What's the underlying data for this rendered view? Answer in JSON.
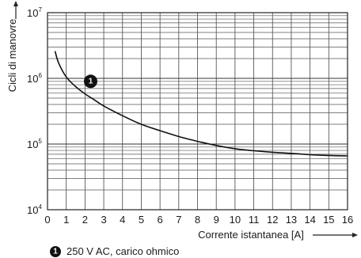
{
  "chart_data": {
    "type": "line",
    "xlabel": "Corrente istantanea [A]",
    "ylabel": "Cicli di manovre",
    "xlim": [
      0,
      16
    ],
    "ylim": [
      10000,
      10000000
    ],
    "yscale": "log",
    "grid": true,
    "x_ticks": [
      "0",
      "1",
      "2",
      "3",
      "4",
      "5",
      "6",
      "7",
      "8",
      "9",
      "10",
      "11",
      "12",
      "13",
      "14",
      "15",
      "16"
    ],
    "y_ticks": [
      {
        "base": "10",
        "exp": "4",
        "value": 10000
      },
      {
        "base": "10",
        "exp": "5",
        "value": 100000
      },
      {
        "base": "10",
        "exp": "6",
        "value": 1000000
      },
      {
        "base": "10",
        "exp": "7",
        "value": 10000000
      }
    ],
    "series": [
      {
        "name": "1",
        "x": [
          0.4,
          0.6,
          1,
          1.5,
          2,
          2.5,
          3,
          4,
          5,
          6,
          7,
          8,
          9,
          10,
          11,
          12,
          13,
          14,
          15,
          16
        ],
        "y": [
          2600000,
          1700000,
          1050000,
          750000,
          580000,
          470000,
          380000,
          270000,
          200000,
          160000,
          130000,
          110000,
          95000,
          85000,
          79000,
          75000,
          72000,
          69000,
          67000,
          66000
        ]
      }
    ],
    "annotations": [
      {
        "marker": "1",
        "x": 2.3,
        "y": 900000
      }
    ],
    "legend": {
      "marker": "1",
      "text": "250 V AC, carico ohmico"
    }
  }
}
